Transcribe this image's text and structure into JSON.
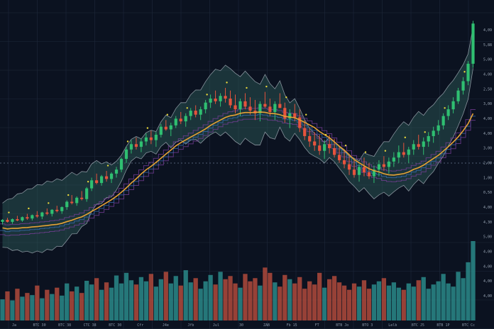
{
  "chart_data": {
    "type": "candlestick",
    "grid": true,
    "legend": "none",
    "colors": {
      "background": "#0b1220",
      "grid": "#1e293b",
      "up": "#2fbf71",
      "down": "#e5533d",
      "volume_up": "#2a8a8a",
      "volume_down": "#b04a3c",
      "moving_average": "#e5a236",
      "cloud_fill": "#2e5f5a",
      "cloud_edge": "#d7dee8",
      "channel": "#7a3f9a",
      "channel2": "#3a6fb5",
      "dot": "#e9d83b",
      "dashed": "#6b7890"
    },
    "candles": [
      [
        0,
        100,
        104,
        96,
        103
      ],
      [
        1,
        103,
        106,
        99,
        100
      ],
      [
        2,
        100,
        105,
        97,
        104
      ],
      [
        3,
        104,
        109,
        101,
        102
      ],
      [
        4,
        102,
        108,
        100,
        107
      ],
      [
        5,
        107,
        112,
        103,
        105
      ],
      [
        6,
        105,
        111,
        102,
        110
      ],
      [
        7,
        110,
        116,
        106,
        108
      ],
      [
        8,
        108,
        115,
        104,
        114
      ],
      [
        9,
        114,
        120,
        110,
        112
      ],
      [
        10,
        112,
        119,
        108,
        118
      ],
      [
        11,
        118,
        124,
        114,
        116
      ],
      [
        12,
        116,
        123,
        112,
        122
      ],
      [
        13,
        122,
        132,
        118,
        130
      ],
      [
        14,
        130,
        140,
        126,
        128
      ],
      [
        15,
        128,
        138,
        124,
        136
      ],
      [
        16,
        136,
        146,
        132,
        134
      ],
      [
        17,
        134,
        152,
        130,
        150
      ],
      [
        18,
        150,
        166,
        146,
        162
      ],
      [
        19,
        162,
        172,
        156,
        158
      ],
      [
        20,
        158,
        170,
        154,
        168
      ],
      [
        21,
        168,
        176,
        160,
        164
      ],
      [
        22,
        164,
        174,
        158,
        172
      ],
      [
        23,
        172,
        182,
        166,
        178
      ],
      [
        24,
        178,
        196,
        174,
        194
      ],
      [
        25,
        194,
        212,
        188,
        208
      ],
      [
        26,
        208,
        222,
        202,
        216
      ],
      [
        27,
        216,
        226,
        208,
        212
      ],
      [
        28,
        212,
        224,
        204,
        220
      ],
      [
        29,
        220,
        232,
        214,
        226
      ],
      [
        30,
        226,
        236,
        216,
        222
      ],
      [
        31,
        222,
        234,
        212,
        230
      ],
      [
        32,
        230,
        246,
        226,
        242
      ],
      [
        33,
        242,
        252,
        236,
        238
      ],
      [
        34,
        238,
        248,
        228,
        244
      ],
      [
        35,
        244,
        258,
        240,
        254
      ],
      [
        36,
        254,
        264,
        246,
        250
      ],
      [
        37,
        250,
        262,
        242,
        258
      ],
      [
        38,
        258,
        270,
        252,
        266
      ],
      [
        39,
        266,
        274,
        256,
        260
      ],
      [
        40,
        260,
        272,
        252,
        268
      ],
      [
        41,
        268,
        282,
        262,
        278
      ],
      [
        42,
        278,
        290,
        270,
        284
      ],
      [
        43,
        284,
        296,
        276,
        280
      ],
      [
        44,
        280,
        292,
        272,
        288
      ],
      [
        45,
        288,
        300,
        278,
        284
      ],
      [
        46,
        284,
        296,
        270,
        274
      ],
      [
        47,
        274,
        290,
        262,
        268
      ],
      [
        48,
        268,
        284,
        258,
        280
      ],
      [
        49,
        280,
        292,
        268,
        272
      ],
      [
        50,
        272,
        286,
        260,
        266
      ],
      [
        51,
        266,
        282,
        252,
        262
      ],
      [
        52,
        262,
        280,
        250,
        276
      ],
      [
        53,
        276,
        294,
        270,
        272
      ],
      [
        54,
        272,
        284,
        258,
        264
      ],
      [
        55,
        264,
        280,
        252,
        276
      ],
      [
        56,
        276,
        292,
        270,
        270
      ],
      [
        57,
        270,
        278,
        248,
        254
      ],
      [
        58,
        254,
        268,
        240,
        262
      ],
      [
        59,
        262,
        276,
        250,
        256
      ],
      [
        60,
        256,
        268,
        234,
        240
      ],
      [
        61,
        240,
        252,
        222,
        228
      ],
      [
        62,
        228,
        240,
        212,
        220
      ],
      [
        63,
        220,
        234,
        206,
        214
      ],
      [
        64,
        214,
        230,
        200,
        206
      ],
      [
        65,
        206,
        222,
        194,
        216
      ],
      [
        66,
        216,
        230,
        202,
        210
      ],
      [
        67,
        210,
        224,
        196,
        200
      ],
      [
        68,
        200,
        214,
        188,
        192
      ],
      [
        69,
        192,
        206,
        180,
        186
      ],
      [
        70,
        186,
        198,
        170,
        178
      ],
      [
        71,
        178,
        192,
        166,
        170
      ],
      [
        72,
        170,
        186,
        160,
        182
      ],
      [
        73,
        182,
        196,
        168,
        174
      ],
      [
        74,
        174,
        188,
        164,
        168
      ],
      [
        75,
        168,
        184,
        158,
        178
      ],
      [
        76,
        178,
        192,
        168,
        186
      ],
      [
        77,
        186,
        198,
        176,
        182
      ],
      [
        78,
        182,
        196,
        172,
        190
      ],
      [
        79,
        190,
        204,
        182,
        196
      ],
      [
        80,
        196,
        214,
        188,
        204
      ],
      [
        81,
        204,
        218,
        196,
        200
      ],
      [
        82,
        200,
        212,
        188,
        208
      ],
      [
        83,
        208,
        222,
        200,
        216
      ],
      [
        84,
        216,
        230,
        208,
        212
      ],
      [
        85,
        212,
        226,
        200,
        220
      ],
      [
        86,
        220,
        234,
        212,
        228
      ],
      [
        87,
        228,
        242,
        218,
        236
      ],
      [
        88,
        236,
        252,
        230,
        244
      ],
      [
        89,
        244,
        262,
        238,
        258
      ],
      [
        90,
        258,
        274,
        252,
        268
      ],
      [
        91,
        268,
        286,
        262,
        280
      ],
      [
        92,
        280,
        300,
        276,
        296
      ],
      [
        93,
        296,
        316,
        290,
        310
      ],
      [
        94,
        310,
        340,
        304,
        336
      ],
      [
        95,
        336,
        400,
        330,
        396
      ]
    ],
    "volumes": [
      40,
      55,
      38,
      60,
      45,
      52,
      48,
      66,
      42,
      58,
      50,
      62,
      47,
      70,
      55,
      64,
      52,
      75,
      68,
      80,
      58,
      72,
      62,
      85,
      70,
      90,
      76,
      68,
      82,
      74,
      88,
      64,
      78,
      92,
      70,
      84,
      66,
      95,
      72,
      80,
      60,
      74,
      86,
      68,
      92,
      78,
      84,
      70,
      62,
      88,
      74,
      80,
      66,
      100,
      90,
      72,
      64,
      86,
      78,
      70,
      82,
      60,
      74,
      68,
      90,
      62,
      78,
      84,
      72,
      66,
      58,
      70,
      64,
      76,
      60,
      68,
      74,
      80,
      66,
      72,
      62,
      58,
      70,
      64,
      76,
      82,
      60,
      68,
      74,
      88,
      70,
      64,
      92,
      80,
      110,
      150
    ],
    "x_tick_labels": [
      "Ja",
      "BTC 30",
      "BTC 38",
      "CTC 38",
      "BTC 30",
      "Cfr",
      "J4e",
      "Jfb",
      "Jul",
      "30",
      "ZAB",
      "Fb 15",
      "FT",
      "BTB Jo",
      "BTO 3",
      "Lelb",
      "BTC J5",
      "BTB 1P",
      "BTC Cc"
    ],
    "price_tick_labels": [
      "4,09",
      "5,88",
      "5,00",
      "4,00",
      "2,50",
      "3,00",
      "4,00",
      "4,00",
      "3,00",
      "2,00",
      "1,00",
      "0,50",
      "4,00",
      "4,30",
      "5,00",
      "4,00",
      "4,00",
      "4,00",
      "4,00"
    ]
  }
}
